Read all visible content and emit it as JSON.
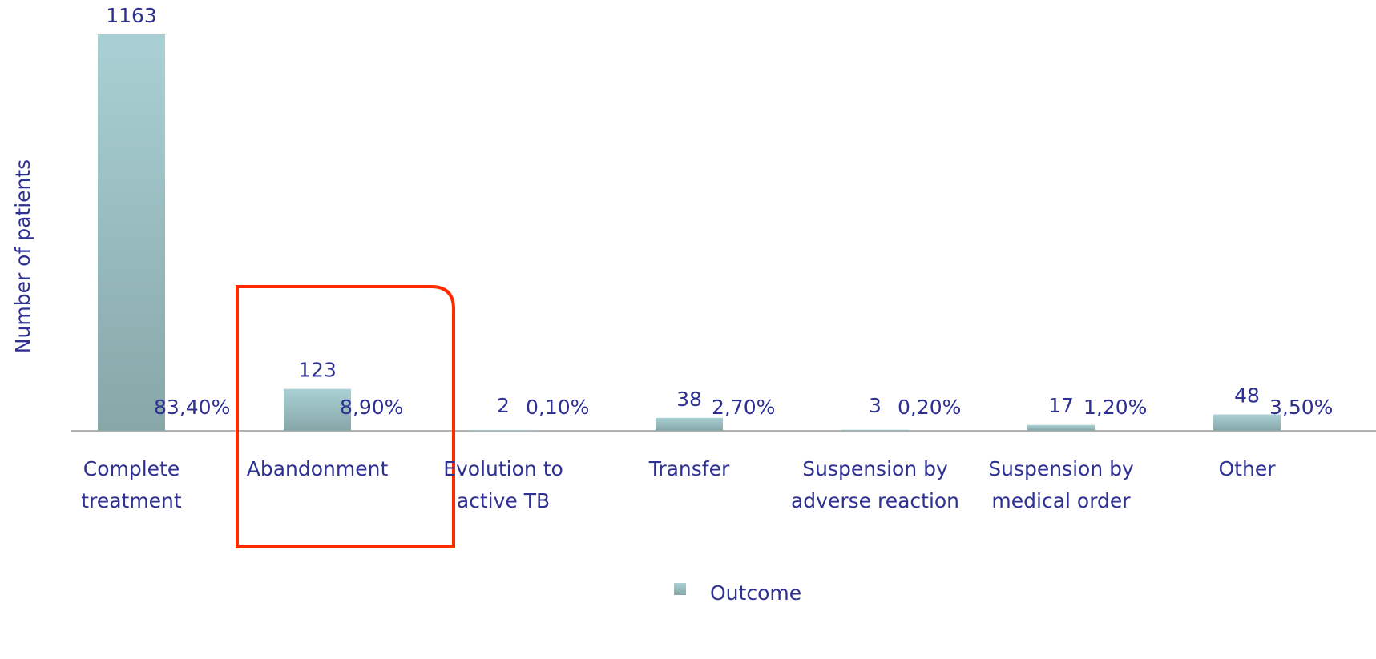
{
  "chart_data": {
    "type": "bar",
    "y_label": "Number of patients",
    "categories": [
      "Complete treatment",
      "Abandonment",
      "Evolution to active TB",
      "Transfer",
      "Suspension by adverse reaction",
      "Suspension by medical order",
      "Other"
    ],
    "series": [
      {
        "name": "Outcome",
        "color": "#9cc3c7",
        "values": [
          1163,
          123,
          2,
          38,
          3,
          17,
          48
        ],
        "percentages": [
          83.4,
          8.9,
          0.1,
          2.7,
          0.2,
          1.2,
          3.5
        ],
        "percentage_labels": [
          "83,40%",
          "8,90%",
          "0,10%",
          "2,70%",
          "0,20%",
          "1,20%",
          "3,50%"
        ]
      }
    ],
    "ylim": [
      0,
      1170
    ],
    "grid": false
  }
}
